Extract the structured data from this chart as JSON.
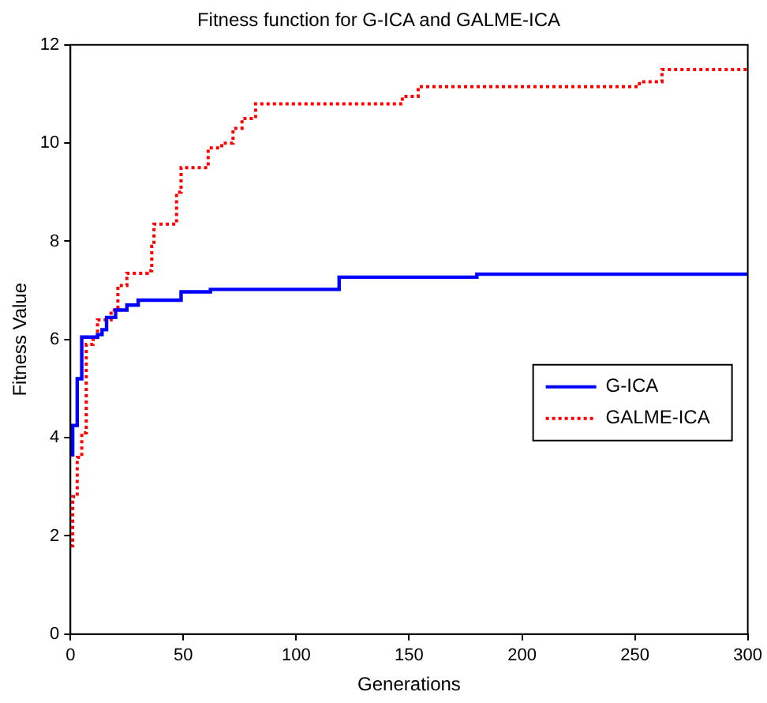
{
  "chart_data": {
    "type": "step",
    "title": "Fitness function for G-ICA and GALME-ICA",
    "xlabel": "Generations",
    "ylabel": "Fitness Value",
    "xlim": [
      0,
      300
    ],
    "xticks": [
      0,
      50,
      100,
      150,
      200,
      250,
      300
    ],
    "ylim": [
      0,
      12
    ],
    "yticks": [
      0,
      2,
      4,
      6,
      8,
      10,
      12
    ],
    "grid": false,
    "legend": "right",
    "series": [
      {
        "name": "G-ICA",
        "color": "#0000ff",
        "line_style": "solid",
        "x": [
          0,
          1,
          3,
          5,
          12,
          14,
          16,
          20,
          25,
          30,
          49,
          62,
          119,
          180,
          300
        ],
        "values": [
          3.65,
          4.25,
          5.2,
          6.05,
          6.1,
          6.2,
          6.45,
          6.6,
          6.7,
          6.8,
          6.97,
          7.02,
          7.27,
          7.33,
          7.33
        ]
      },
      {
        "name": "GALME-ICA",
        "color": "#ff0000",
        "line_style": "dotted",
        "x": [
          0,
          1,
          3,
          5,
          7,
          10,
          12,
          18,
          21,
          25,
          34,
          36,
          37,
          47,
          49,
          61,
          67,
          72,
          76,
          82,
          147,
          154,
          252,
          262,
          300
        ],
        "values": [
          1.8,
          2.8,
          3.6,
          4.1,
          5.9,
          6.0,
          6.4,
          6.6,
          7.1,
          7.35,
          7.4,
          7.9,
          8.35,
          9.0,
          9.5,
          9.9,
          10.0,
          10.3,
          10.5,
          10.8,
          10.95,
          11.15,
          11.25,
          11.5,
          11.5
        ]
      }
    ]
  }
}
